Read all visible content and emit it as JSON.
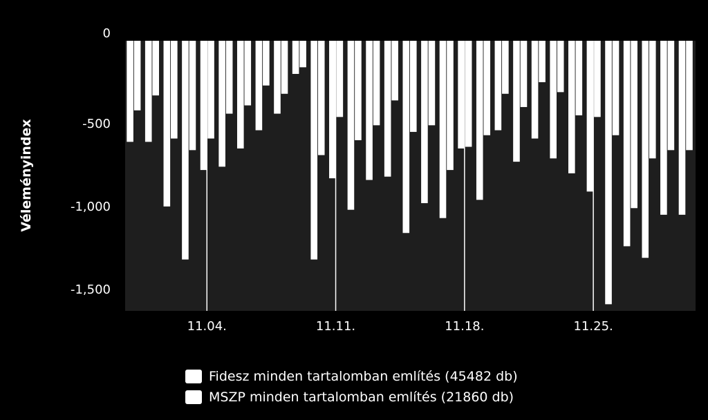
{
  "colors": {
    "background": "#000000",
    "plot_area": "#1e1e1e",
    "bars": "#ffffff",
    "text": "#ffffff"
  },
  "chart_data": {
    "type": "bar",
    "title": "",
    "xlabel": "",
    "ylabel": "Véleményindex",
    "ylim": [
      -1630,
      0
    ],
    "y_ticks": [
      0,
      -500,
      -1000,
      -1500
    ],
    "y_tick_labels": [
      "0",
      "-500",
      "-1,000",
      "-1,500"
    ],
    "x_tick_labels": [
      "11.04.",
      "11.11.",
      "11.18.",
      "11.25."
    ],
    "x_tick_days": [
      4,
      11,
      18,
      25
    ],
    "grid": false,
    "legend_position": "bottom",
    "days": [
      31,
      1,
      2,
      3,
      4,
      5,
      6,
      7,
      8,
      9,
      10,
      11,
      12,
      13,
      14,
      15,
      16,
      17,
      18,
      19,
      20,
      21,
      22,
      23,
      24,
      25,
      26,
      27,
      28,
      29,
      30
    ],
    "series": [
      {
        "name": "Fidesz minden tartalomban említés (45482 db)",
        "values": [
          -610,
          -610,
          -1000,
          -1320,
          -780,
          -760,
          -650,
          -540,
          -440,
          -200,
          -1320,
          -830,
          -1020,
          -840,
          -820,
          -1160,
          -980,
          -1070,
          -650,
          -960,
          -540,
          -730,
          -590,
          -710,
          -800,
          -910,
          -1590,
          -1240,
          -1310,
          -1050,
          -1050
        ]
      },
      {
        "name": "MSZP minden tartalomban említés (21860 db)",
        "values": [
          -420,
          -330,
          -590,
          -660,
          -590,
          -440,
          -390,
          -270,
          -320,
          -160,
          -690,
          -460,
          -600,
          -510,
          -360,
          -550,
          -510,
          -780,
          -640,
          -570,
          -320,
          -400,
          -250,
          -310,
          -450,
          -460,
          -570,
          -1010,
          -710,
          -660,
          -660
        ]
      }
    ]
  }
}
